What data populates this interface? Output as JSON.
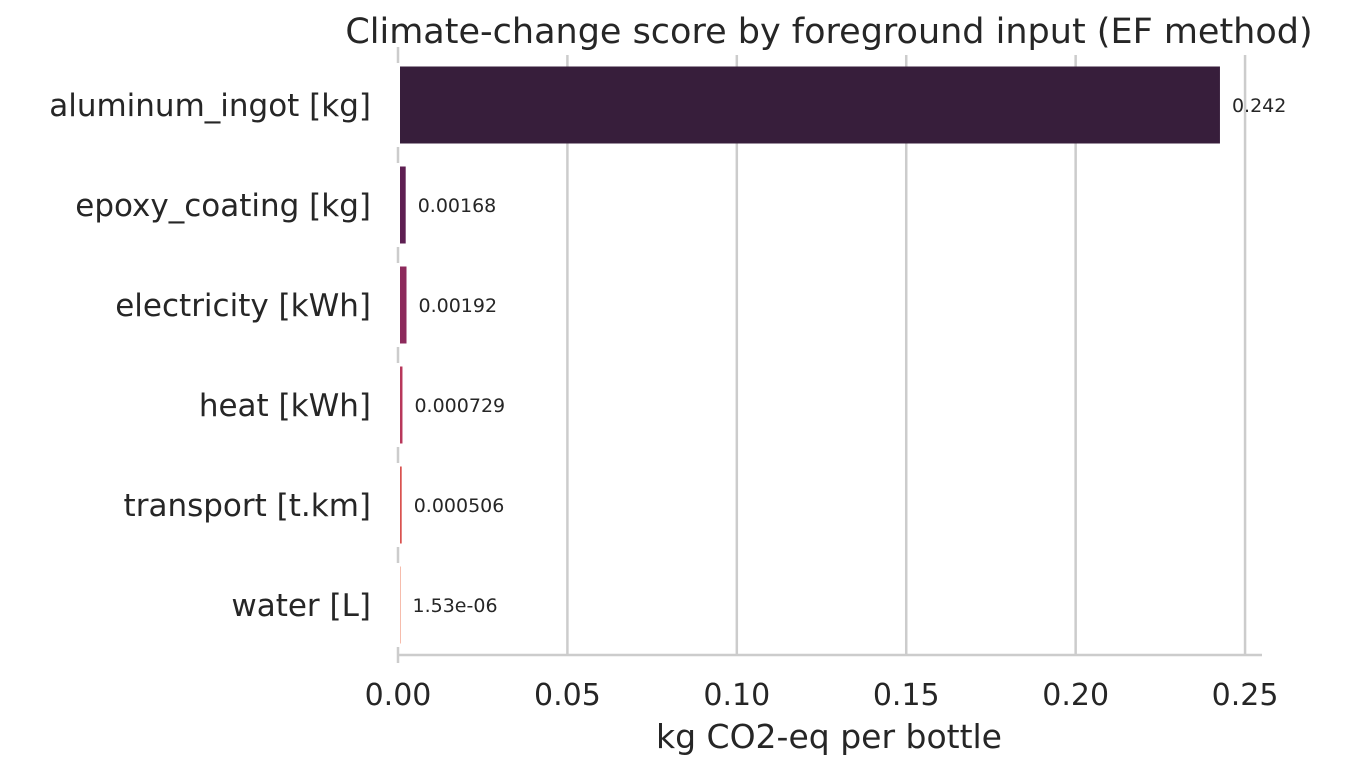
{
  "chart_data": {
    "type": "bar",
    "orientation": "horizontal",
    "title": "Climate-change score by foreground input (EF method)",
    "xlabel": "kg CO2-eq per bottle",
    "ylabel": "",
    "xlim": [
      0,
      0.255
    ],
    "xticks": [
      0.0,
      0.05,
      0.1,
      0.15,
      0.2,
      0.25
    ],
    "xtick_labels": [
      "0.00",
      "0.05",
      "0.10",
      "0.15",
      "0.20",
      "0.25"
    ],
    "grid": "vertical",
    "categories": [
      "aluminum_ingot [kg]",
      "epoxy_coating [kg]",
      "electricity [kWh]",
      "heat [kWh]",
      "transport [t.km]",
      "water [L]"
    ],
    "values": [
      0.242,
      0.00168,
      0.00192,
      0.000729,
      0.000506,
      1.53e-06
    ],
    "value_labels": [
      "0.242",
      "0.00168",
      "0.00192",
      "0.000729",
      "0.000506",
      "1.53e-06"
    ],
    "colors": [
      "#371e3b",
      "#5e1f52",
      "#8d2a5c",
      "#b8385b",
      "#d9524f",
      "#ee7a5a"
    ]
  }
}
